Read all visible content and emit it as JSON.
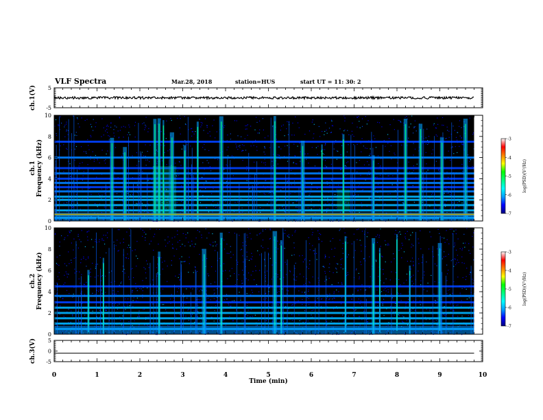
{
  "header": {
    "title": "VLF Spectra",
    "date": "Mar.28, 2018",
    "station": "station=HUS",
    "start": "start  UT =   11: 30: 2"
  },
  "chart_data": [
    {
      "type": "line",
      "panel": "ch1-waveform",
      "ylabel": "ch.1(V)",
      "ylim": [
        -5,
        5
      ],
      "y_ticks": [
        "5",
        "-5"
      ],
      "xlim": [
        0,
        10
      ],
      "series": [
        {
          "values_approx": "noise around 0 V, amplitude ~0.5 V, from 0 to 9.8 min"
        }
      ],
      "trace_color": "#000000"
    },
    {
      "type": "heatmap",
      "panel": "ch1-spectrogram",
      "ylabel": "ch.1\nFrequency  (kHz)",
      "ylim": [
        0,
        10
      ],
      "y_ticks": [
        "0",
        "2",
        "4",
        "6",
        "8",
        "10"
      ],
      "xlim": [
        0,
        10
      ],
      "data_end_min": 9.8,
      "horizontal_lines_khz": [
        0.3,
        0.6,
        1.0,
        1.5,
        2.0,
        2.3,
        2.8,
        3.2,
        3.6,
        4.0,
        4.5,
        5.0,
        6.0,
        7.5
      ],
      "vertical_bursts_min": [
        1.35,
        1.65,
        2.35,
        2.45,
        2.55,
        2.75,
        3.05,
        3.35,
        3.9,
        5.15,
        5.8,
        6.25,
        6.75,
        7.45,
        8.2,
        8.55,
        9.05,
        9.6
      ],
      "background_color": "#000000"
    },
    {
      "type": "heatmap",
      "panel": "ch2-spectrogram",
      "ylabel": "ch.2\nFrequency  (kHz)",
      "ylim": [
        0,
        10
      ],
      "y_ticks": [
        "0",
        "2",
        "4",
        "6",
        "8",
        "10"
      ],
      "xlim": [
        0,
        10
      ],
      "data_end_min": 9.8,
      "horizontal_lines_khz": [
        0.5,
        1.0,
        1.5,
        2.0,
        2.5,
        3.0,
        3.6,
        4.5
      ],
      "vertical_bursts_min": [
        0.8,
        1.15,
        2.45,
        3.5,
        3.9,
        5.15,
        5.3,
        6.8,
        7.45,
        7.6,
        8.0,
        8.3,
        9.0
      ],
      "background_color": "#000000"
    },
    {
      "type": "line",
      "panel": "ch3-waveform",
      "ylabel": "ch.3(V)",
      "ylim": [
        -5,
        5
      ],
      "y_ticks": [
        "5",
        "0",
        "-5"
      ],
      "xlim": [
        0,
        10
      ],
      "xlabel": "Time  (min)",
      "x_ticks": [
        "0",
        "1",
        "2",
        "3",
        "4",
        "5",
        "6",
        "7",
        "8",
        "9",
        "10"
      ],
      "series": [
        {
          "values": "flat line at -1 V from 0 to 9.8 min"
        }
      ],
      "trace_color": "#000000"
    },
    {
      "type": "colorbar",
      "label": "log(PSD)(V²/Hz)",
      "range": [
        -7,
        -3
      ],
      "ticks": [
        "-3",
        "-4",
        "-5",
        "-6",
        "-7"
      ],
      "colormap": [
        "#000080",
        "#0000ff",
        "#00a0ff",
        "#00ffff",
        "#00ff80",
        "#00ff00",
        "#ffff00",
        "#ff8000",
        "#ff0000",
        "#ffffff"
      ]
    }
  ]
}
